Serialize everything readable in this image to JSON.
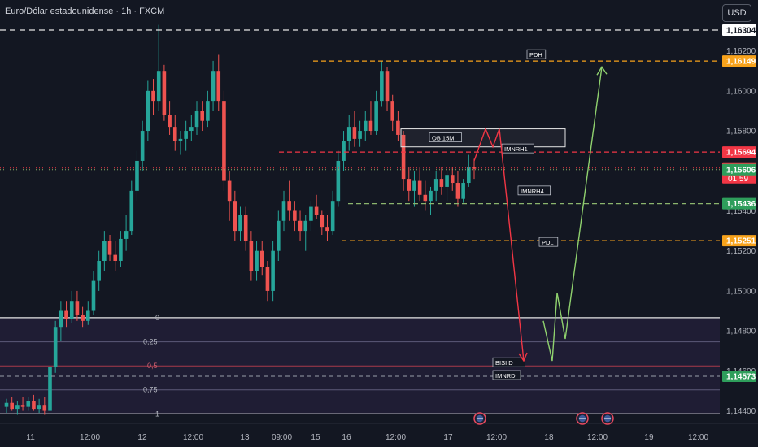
{
  "header": {
    "title": "Euro/Dólar estadounidense · 1h · FXCM",
    "currency_button": "USD"
  },
  "colors": {
    "background": "#131722",
    "up": "#26a69a",
    "down": "#ef5350",
    "white_line": "#e6e6e6",
    "orange": "#f7a21b",
    "red_line": "#f23645",
    "green_dash": "#8bb56d",
    "green_label": "#2e9e5b",
    "fib_zone": "#2a2344",
    "arrow_red": "#f23645",
    "arrow_green": "#8fd16e"
  },
  "chart_data": {
    "type": "candlestick",
    "symbol": "Euro/Dólar estadounidense",
    "timeframe": "1h",
    "source": "FXCM",
    "y_axis": {
      "ticks": [
        1.162,
        1.16,
        1.158,
        1.154,
        1.152,
        1.15,
        1.148,
        1.146,
        1.144
      ],
      "tick_labels": [
        "1,16200",
        "1,16000",
        "1,15800",
        "1,15400",
        "1,15200",
        "1,15000",
        "1,14800",
        "1,14600",
        "1,14400"
      ],
      "range": [
        1.1435,
        1.1637
      ]
    },
    "x_axis": {
      "labels": [
        "11",
        "12:00",
        "12",
        "12:00",
        "13",
        "09:00",
        "15",
        "16",
        "12:00",
        "17",
        "12:00",
        "18",
        "12:00",
        "19",
        "12:00"
      ]
    },
    "candles": [
      {
        "o": 1.1442,
        "h": 1.1446,
        "l": 1.1439,
        "c": 1.1444
      },
      {
        "o": 1.1444,
        "h": 1.1447,
        "l": 1.144,
        "c": 1.1441
      },
      {
        "o": 1.1441,
        "h": 1.1445,
        "l": 1.1438,
        "c": 1.1443
      },
      {
        "o": 1.1443,
        "h": 1.1447,
        "l": 1.144,
        "c": 1.1442
      },
      {
        "o": 1.1442,
        "h": 1.1447,
        "l": 1.144,
        "c": 1.1445
      },
      {
        "o": 1.1445,
        "h": 1.1448,
        "l": 1.144,
        "c": 1.1441
      },
      {
        "o": 1.1441,
        "h": 1.1446,
        "l": 1.1439,
        "c": 1.1443
      },
      {
        "o": 1.1443,
        "h": 1.1447,
        "l": 1.1438,
        "c": 1.144
      },
      {
        "o": 1.144,
        "h": 1.1465,
        "l": 1.1438,
        "c": 1.1462
      },
      {
        "o": 1.1462,
        "h": 1.1485,
        "l": 1.1459,
        "c": 1.1482
      },
      {
        "o": 1.1482,
        "h": 1.1495,
        "l": 1.1475,
        "c": 1.149
      },
      {
        "o": 1.149,
        "h": 1.1495,
        "l": 1.1482,
        "c": 1.1486
      },
      {
        "o": 1.1486,
        "h": 1.15,
        "l": 1.1484,
        "c": 1.1495
      },
      {
        "o": 1.1495,
        "h": 1.15,
        "l": 1.1485,
        "c": 1.1488
      },
      {
        "o": 1.1488,
        "h": 1.1492,
        "l": 1.1482,
        "c": 1.1485
      },
      {
        "o": 1.1485,
        "h": 1.1495,
        "l": 1.1483,
        "c": 1.149
      },
      {
        "o": 1.149,
        "h": 1.151,
        "l": 1.1488,
        "c": 1.1505
      },
      {
        "o": 1.1505,
        "h": 1.152,
        "l": 1.15,
        "c": 1.1515
      },
      {
        "o": 1.1515,
        "h": 1.153,
        "l": 1.151,
        "c": 1.1525
      },
      {
        "o": 1.1525,
        "h": 1.1528,
        "l": 1.1515,
        "c": 1.1518
      },
      {
        "o": 1.1518,
        "h": 1.1525,
        "l": 1.151,
        "c": 1.1515
      },
      {
        "o": 1.1515,
        "h": 1.153,
        "l": 1.1512,
        "c": 1.1526
      },
      {
        "o": 1.1526,
        "h": 1.1538,
        "l": 1.152,
        "c": 1.153
      },
      {
        "o": 1.153,
        "h": 1.1555,
        "l": 1.1528,
        "c": 1.155
      },
      {
        "o": 1.155,
        "h": 1.157,
        "l": 1.1545,
        "c": 1.1565
      },
      {
        "o": 1.1565,
        "h": 1.1585,
        "l": 1.156,
        "c": 1.158
      },
      {
        "o": 1.158,
        "h": 1.1605,
        "l": 1.1575,
        "c": 1.16
      },
      {
        "o": 1.16,
        "h": 1.1606,
        "l": 1.1588,
        "c": 1.1595
      },
      {
        "o": 1.1595,
        "h": 1.1633,
        "l": 1.159,
        "c": 1.161
      },
      {
        "o": 1.161,
        "h": 1.1613,
        "l": 1.1585,
        "c": 1.1588
      },
      {
        "o": 1.1588,
        "h": 1.1595,
        "l": 1.1578,
        "c": 1.1582
      },
      {
        "o": 1.1582,
        "h": 1.1588,
        "l": 1.157,
        "c": 1.1575
      },
      {
        "o": 1.1575,
        "h": 1.158,
        "l": 1.1568,
        "c": 1.1576
      },
      {
        "o": 1.1576,
        "h": 1.1585,
        "l": 1.157,
        "c": 1.158
      },
      {
        "o": 1.158,
        "h": 1.1588,
        "l": 1.1575,
        "c": 1.1582
      },
      {
        "o": 1.1582,
        "h": 1.1595,
        "l": 1.1578,
        "c": 1.159
      },
      {
        "o": 1.159,
        "h": 1.1595,
        "l": 1.158,
        "c": 1.1585
      },
      {
        "o": 1.1585,
        "h": 1.16,
        "l": 1.1582,
        "c": 1.1595
      },
      {
        "o": 1.1595,
        "h": 1.1615,
        "l": 1.159,
        "c": 1.161
      },
      {
        "o": 1.161,
        "h": 1.1618,
        "l": 1.159,
        "c": 1.1595
      },
      {
        "o": 1.1595,
        "h": 1.16,
        "l": 1.155,
        "c": 1.1555
      },
      {
        "o": 1.1555,
        "h": 1.156,
        "l": 1.1535,
        "c": 1.1545
      },
      {
        "o": 1.1545,
        "h": 1.155,
        "l": 1.1525,
        "c": 1.153
      },
      {
        "o": 1.153,
        "h": 1.1542,
        "l": 1.1525,
        "c": 1.1538
      },
      {
        "o": 1.1538,
        "h": 1.1542,
        "l": 1.152,
        "c": 1.1525
      },
      {
        "o": 1.1525,
        "h": 1.153,
        "l": 1.1505,
        "c": 1.151
      },
      {
        "o": 1.151,
        "h": 1.1525,
        "l": 1.1505,
        "c": 1.152
      },
      {
        "o": 1.152,
        "h": 1.1525,
        "l": 1.1508,
        "c": 1.1512
      },
      {
        "o": 1.1512,
        "h": 1.1515,
        "l": 1.1495,
        "c": 1.15
      },
      {
        "o": 1.15,
        "h": 1.1525,
        "l": 1.1495,
        "c": 1.152
      },
      {
        "o": 1.152,
        "h": 1.154,
        "l": 1.1515,
        "c": 1.1535
      },
      {
        "o": 1.1535,
        "h": 1.155,
        "l": 1.153,
        "c": 1.1545
      },
      {
        "o": 1.1545,
        "h": 1.1555,
        "l": 1.1535,
        "c": 1.154
      },
      {
        "o": 1.154,
        "h": 1.1545,
        "l": 1.153,
        "c": 1.1535
      },
      {
        "o": 1.1535,
        "h": 1.154,
        "l": 1.1525,
        "c": 1.153
      },
      {
        "o": 1.153,
        "h": 1.1538,
        "l": 1.152,
        "c": 1.1535
      },
      {
        "o": 1.1535,
        "h": 1.1545,
        "l": 1.153,
        "c": 1.1542
      },
      {
        "o": 1.1542,
        "h": 1.1548,
        "l": 1.1536,
        "c": 1.1538
      },
      {
        "o": 1.1538,
        "h": 1.154,
        "l": 1.1528,
        "c": 1.1532
      },
      {
        "o": 1.1532,
        "h": 1.1538,
        "l": 1.1525,
        "c": 1.153
      },
      {
        "o": 1.153,
        "h": 1.155,
        "l": 1.1528,
        "c": 1.1545
      },
      {
        "o": 1.1545,
        "h": 1.157,
        "l": 1.1542,
        "c": 1.1565
      },
      {
        "o": 1.1565,
        "h": 1.158,
        "l": 1.156,
        "c": 1.1575
      },
      {
        "o": 1.1575,
        "h": 1.1588,
        "l": 1.157,
        "c": 1.1582
      },
      {
        "o": 1.1582,
        "h": 1.159,
        "l": 1.1572,
        "c": 1.1576
      },
      {
        "o": 1.1576,
        "h": 1.1585,
        "l": 1.1572,
        "c": 1.158
      },
      {
        "o": 1.158,
        "h": 1.159,
        "l": 1.1575,
        "c": 1.1585
      },
      {
        "o": 1.1585,
        "h": 1.1595,
        "l": 1.1578,
        "c": 1.158
      },
      {
        "o": 1.158,
        "h": 1.16,
        "l": 1.1578,
        "c": 1.1595
      },
      {
        "o": 1.1595,
        "h": 1.1615,
        "l": 1.1592,
        "c": 1.161
      },
      {
        "o": 1.161,
        "h": 1.1612,
        "l": 1.159,
        "c": 1.1595
      },
      {
        "o": 1.1595,
        "h": 1.1598,
        "l": 1.158,
        "c": 1.1585
      },
      {
        "o": 1.1585,
        "h": 1.159,
        "l": 1.1575,
        "c": 1.1578
      },
      {
        "o": 1.1578,
        "h": 1.158,
        "l": 1.155,
        "c": 1.1556
      },
      {
        "o": 1.1556,
        "h": 1.1562,
        "l": 1.1545,
        "c": 1.155
      },
      {
        "o": 1.155,
        "h": 1.156,
        "l": 1.1542,
        "c": 1.1555
      },
      {
        "o": 1.1555,
        "h": 1.1562,
        "l": 1.1545,
        "c": 1.1548
      },
      {
        "o": 1.1548,
        "h": 1.1555,
        "l": 1.154,
        "c": 1.1545
      },
      {
        "o": 1.1545,
        "h": 1.1552,
        "l": 1.1538,
        "c": 1.155
      },
      {
        "o": 1.155,
        "h": 1.156,
        "l": 1.1545,
        "c": 1.1556
      },
      {
        "o": 1.1556,
        "h": 1.1562,
        "l": 1.1548,
        "c": 1.1552
      },
      {
        "o": 1.1552,
        "h": 1.156,
        "l": 1.1545,
        "c": 1.1558
      },
      {
        "o": 1.1558,
        "h": 1.1562,
        "l": 1.155,
        "c": 1.1554
      },
      {
        "o": 1.1554,
        "h": 1.156,
        "l": 1.1542,
        "c": 1.1546
      },
      {
        "o": 1.1546,
        "h": 1.1556,
        "l": 1.1544,
        "c": 1.1554
      },
      {
        "o": 1.1554,
        "h": 1.1568,
        "l": 1.1552,
        "c": 1.1562
      },
      {
        "o": 1.1562,
        "h": 1.1566,
        "l": 1.1556,
        "c": 1.1561
      }
    ],
    "horizontal_levels": [
      {
        "name": "top-level",
        "price": 1.16304,
        "label": "1,16304",
        "style": "dashed-white"
      },
      {
        "name": "pdh-level",
        "price": 1.16149,
        "label": "1,16149",
        "style": "dashed-orange"
      },
      {
        "name": "imnrh1-level",
        "price": 1.15694,
        "label": "1,15694",
        "style": "dashed-red"
      },
      {
        "name": "current-price",
        "price": 1.15614,
        "label": "1,15614",
        "countdown": "01:59",
        "style": "dotted-red"
      },
      {
        "name": "level-15606",
        "price": 1.15606,
        "label": "1,15606",
        "style": "dotted-green"
      },
      {
        "name": "imnrh4-level",
        "price": 1.15436,
        "label": "1,15436",
        "style": "dashed-green"
      },
      {
        "name": "pdl-level",
        "price": 1.15251,
        "label": "1,15251",
        "style": "dashed-orange"
      },
      {
        "name": "imnrd-level",
        "price": 1.14573,
        "label": "1,14573",
        "style": "dashed-white"
      }
    ],
    "annotations": [
      "PDH",
      "OB 15M",
      "IMNRH1",
      "IMNRH4",
      "PDL",
      "BISI D",
      "IMNRD"
    ],
    "fibonacci": {
      "levels": [
        {
          "label": "0",
          "price": 1.14866
        },
        {
          "label": "0,25",
          "price": 1.14745
        },
        {
          "label": "0,5",
          "price": 1.14625
        },
        {
          "label": "0,75",
          "price": 1.14505
        },
        {
          "label": "1",
          "price": 1.14385
        }
      ]
    },
    "order_block": {
      "label": "OB 15M",
      "top": 1.1581,
      "bottom": 1.1572
    },
    "projection_red": [
      [
        1.1565,
        1.1581
      ],
      [
        1.1576,
        1.1572
      ],
      [
        1.157,
        1.1465
      ]
    ],
    "projection_green": [
      [
        1.1465,
        1.1498
      ],
      [
        1.1476,
        1.146
      ],
      [
        1.1612
      ]
    ],
    "event_markers": 3
  }
}
